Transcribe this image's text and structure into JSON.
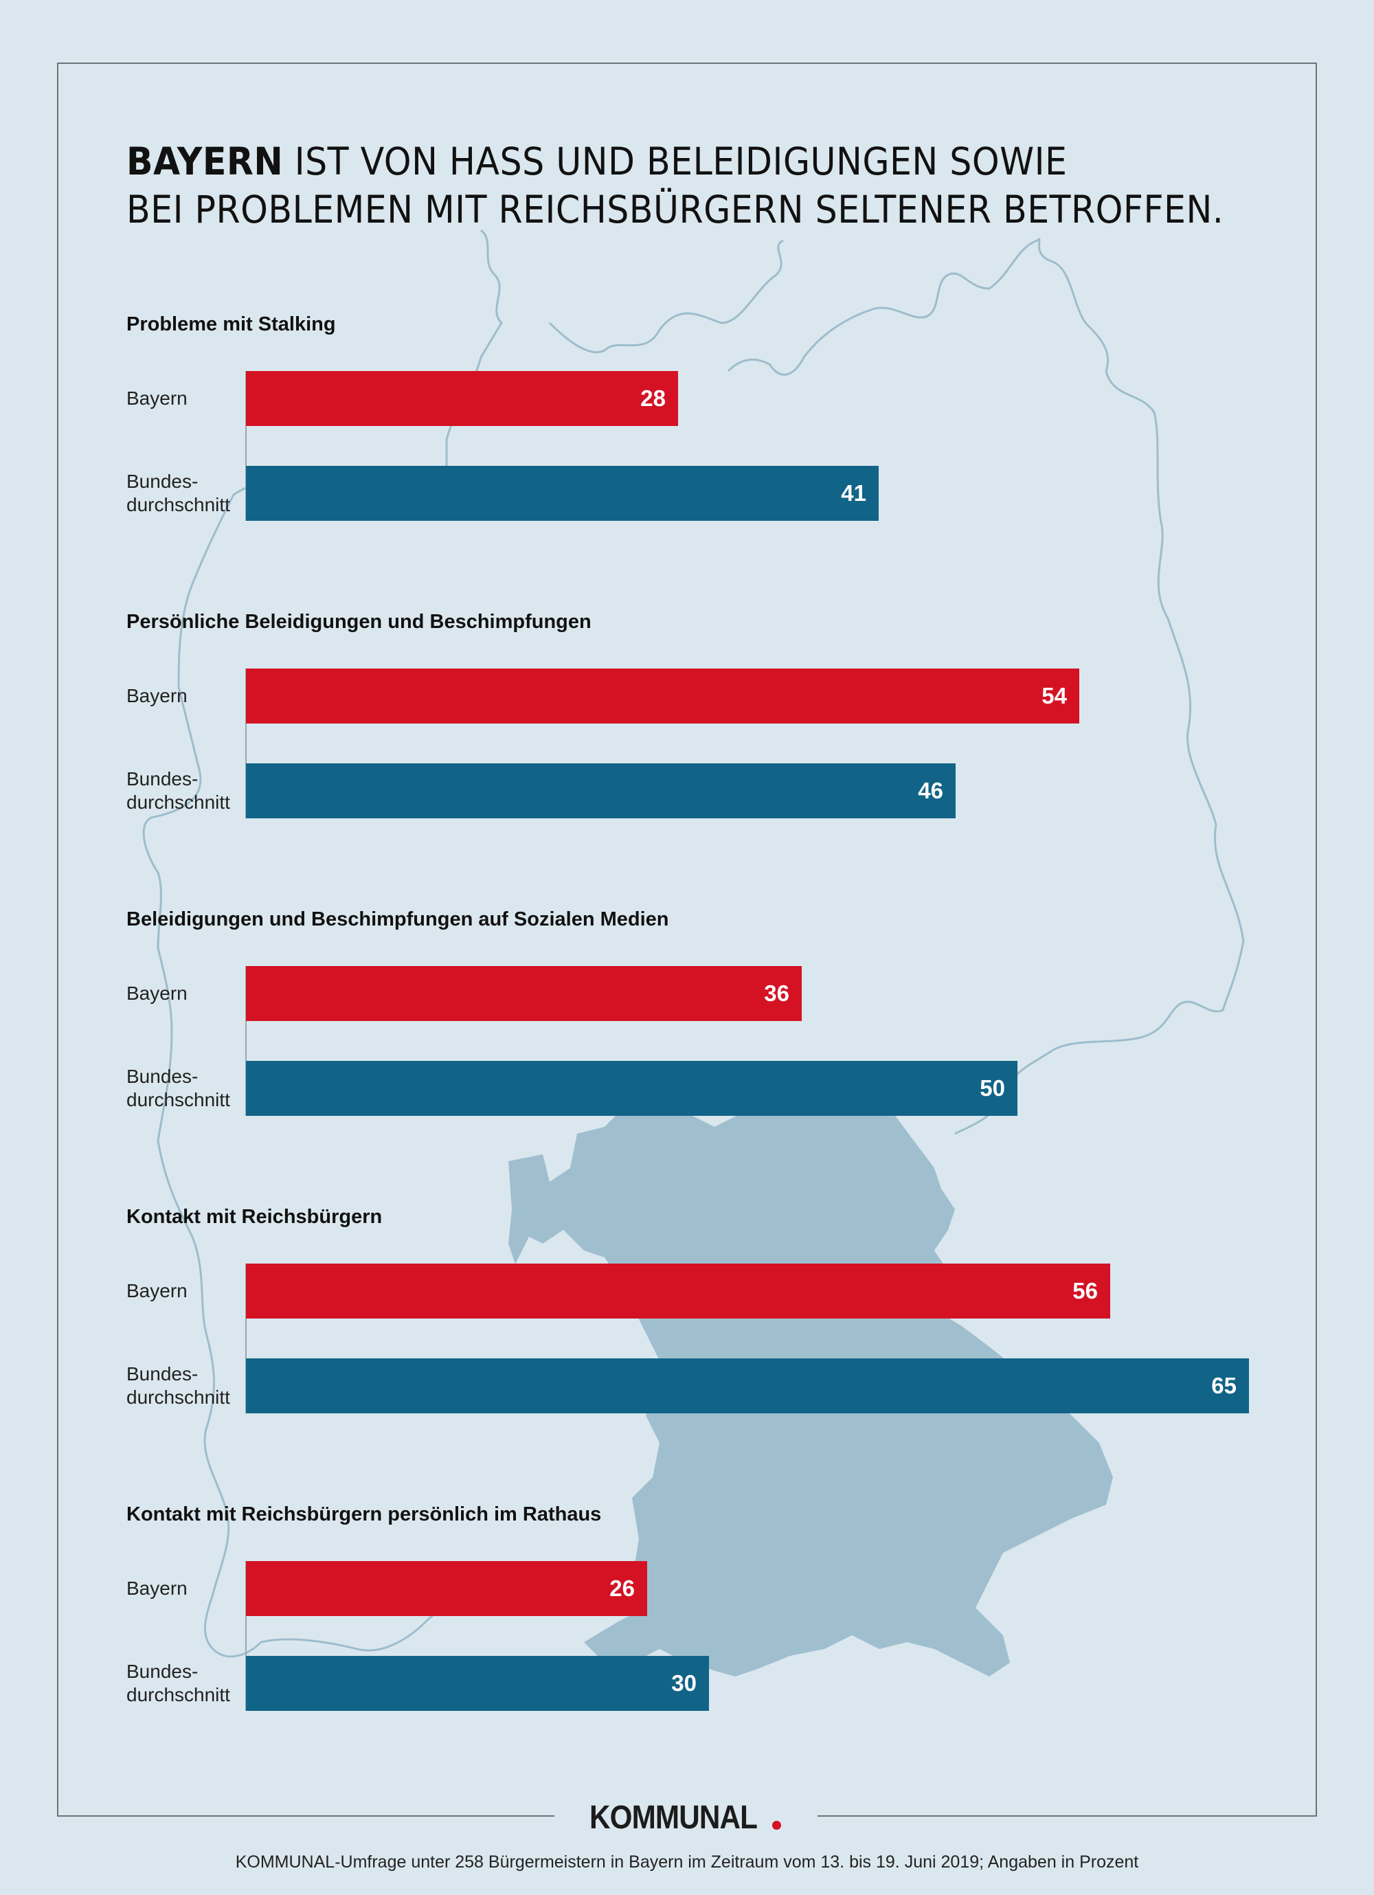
{
  "title": {
    "bold": "BAYERN",
    "line1_rest": " IST VON HASS UND BELEIDIGUNGEN SOWIE",
    "line2": "BEI PROBLEMEN MIT REICHSBÜRGERN SELTENER BETROFFEN."
  },
  "colors": {
    "background": "#dbe7ee",
    "bayern": "#d41224",
    "bund": "#116387",
    "map_bayern_fill": "#9fbfcf",
    "map_outline": "#9dbdcc",
    "frame": "#6b7475",
    "logo_dot": "#d41224"
  },
  "logo": {
    "text": "KOMMUNAL",
    "dot": "."
  },
  "footnote": "KOMMUNAL-Umfrage unter 258 Bürgermeistern in Bayern im Zeitraum vom 13. bis 19. Juni 2019; Angaben in Prozent",
  "chart_data": {
    "type": "bar",
    "orientation": "horizontal",
    "unit": "Prozent",
    "title": "BAYERN IST VON HASS UND BELEIDIGUNGEN SOWIE BEI PROBLEMEN MIT REICHSBÜRGERN SELTENER BETROFFEN.",
    "xlabel": "",
    "ylabel": "",
    "xlim": [
      0,
      65
    ],
    "grid": false,
    "legend": "none",
    "series_names": [
      "Bayern",
      "Bundes-\ndurchschnitt"
    ],
    "groups": [
      {
        "title": "Probleme mit Stalking",
        "series": [
          {
            "name": "Bayern",
            "value": 28
          },
          {
            "name": "Bundes-\ndurchschnitt",
            "value": 41
          }
        ]
      },
      {
        "title": "Persönliche Beleidigungen und Beschimpfungen",
        "series": [
          {
            "name": "Bayern",
            "value": 54
          },
          {
            "name": "Bundes-\ndurchschnitt",
            "value": 46
          }
        ]
      },
      {
        "title": "Beleidigungen und Beschimpfungen auf Sozialen Medien",
        "series": [
          {
            "name": "Bayern",
            "value": 36
          },
          {
            "name": "Bundes-\ndurchschnitt",
            "value": 50
          }
        ]
      },
      {
        "title": "Kontakt mit Reichsbürgern",
        "series": [
          {
            "name": "Bayern",
            "value": 56
          },
          {
            "name": "Bundes-\ndurchschnitt",
            "value": 65
          }
        ]
      },
      {
        "title": "Kontakt mit Reichsbürgern persönlich im Rathaus",
        "series": [
          {
            "name": "Bayern",
            "value": 26
          },
          {
            "name": "Bundes-\ndurchschnitt",
            "value": 30
          }
        ]
      }
    ]
  }
}
